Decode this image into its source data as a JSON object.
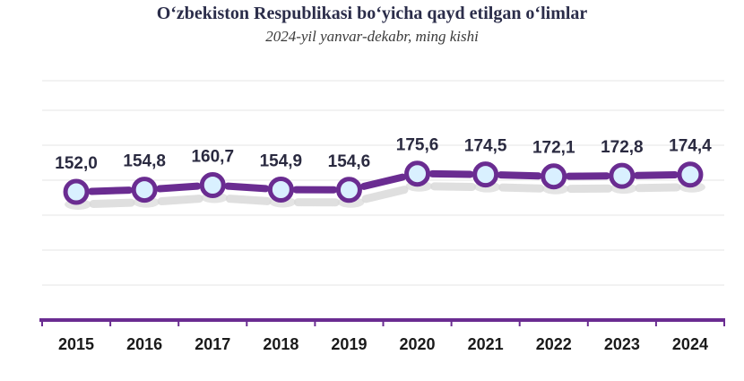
{
  "chart_data": {
    "type": "line",
    "title": "O‘zbekiston Respublikasi bo‘yicha qayd etilgan o‘limlar",
    "subtitle": "2024-yil yanvar-dekabr, ming kishi",
    "categories": [
      "2015",
      "2016",
      "2017",
      "2018",
      "2019",
      "2020",
      "2021",
      "2022",
      "2023",
      "2024"
    ],
    "values": [
      152.0,
      154.8,
      160.7,
      154.9,
      154.6,
      175.6,
      174.5,
      172.1,
      172.8,
      174.4
    ],
    "value_labels": [
      "152,0",
      "154,8",
      "160,7",
      "154,9",
      "154,6",
      "175,6",
      "174,5",
      "172,1",
      "172,8",
      "174,4"
    ],
    "xlabel": "",
    "ylabel": "",
    "grid": true,
    "legend": "none",
    "colors": {
      "line": "#6a2c91",
      "marker_fill": "#d9f0ff",
      "marker_stroke": "#6a2c91",
      "shadow": "#d8d8d8",
      "grid": "#e6e6e6",
      "axis": "#6a2c91"
    }
  }
}
